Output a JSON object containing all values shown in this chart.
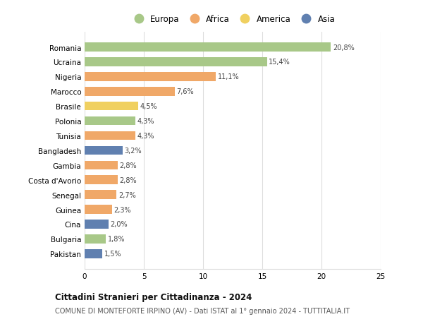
{
  "categories": [
    "Romania",
    "Ucraina",
    "Nigeria",
    "Marocco",
    "Brasile",
    "Polonia",
    "Tunisia",
    "Bangladesh",
    "Gambia",
    "Costa d'Avorio",
    "Senegal",
    "Guinea",
    "Cina",
    "Bulgaria",
    "Pakistan"
  ],
  "values": [
    20.8,
    15.4,
    11.1,
    7.6,
    4.5,
    4.3,
    4.3,
    3.2,
    2.8,
    2.8,
    2.7,
    2.3,
    2.0,
    1.8,
    1.5
  ],
  "labels": [
    "20,8%",
    "15,4%",
    "11,1%",
    "7,6%",
    "4,5%",
    "4,3%",
    "4,3%",
    "3,2%",
    "2,8%",
    "2,8%",
    "2,7%",
    "2,3%",
    "2,0%",
    "1,8%",
    "1,5%"
  ],
  "colors": [
    "#a8c888",
    "#a8c888",
    "#f0a868",
    "#f0a868",
    "#f0d060",
    "#a8c888",
    "#f0a868",
    "#6080b0",
    "#f0a868",
    "#f0a868",
    "#f0a868",
    "#f0a868",
    "#6080b0",
    "#a8c888",
    "#6080b0"
  ],
  "legend_labels": [
    "Europa",
    "Africa",
    "America",
    "Asia"
  ],
  "legend_colors": [
    "#a8c888",
    "#f0a868",
    "#f0d060",
    "#6080b0"
  ],
  "title": "Cittadini Stranieri per Cittadinanza - 2024",
  "subtitle": "COMUNE DI MONTEFORTE IRPINO (AV) - Dati ISTAT al 1° gennaio 2024 - TUTTITALIA.IT",
  "xlim": [
    0,
    25
  ],
  "xticks": [
    0,
    5,
    10,
    15,
    20,
    25
  ],
  "background_color": "#ffffff",
  "grid_color": "#dddddd"
}
